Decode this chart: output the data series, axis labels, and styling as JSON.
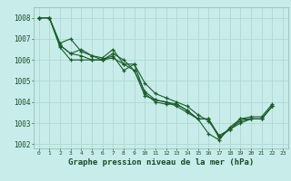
{
  "title": "Graphe pression niveau de la mer (hPa)",
  "bg_color": "#c8ecea",
  "grid_color": "#b0d8d0",
  "line_color": "#1a5c2a",
  "xlim_min": -0.5,
  "xlim_max": 23.5,
  "ylim_min": 1001.8,
  "ylim_max": 1008.5,
  "yticks": [
    1002,
    1003,
    1004,
    1005,
    1006,
    1007,
    1008
  ],
  "xticks": [
    0,
    1,
    2,
    3,
    4,
    5,
    6,
    7,
    8,
    9,
    10,
    11,
    12,
    13,
    14,
    15,
    16,
    17,
    18,
    19,
    20,
    21,
    22,
    23
  ],
  "series": [
    [
      1008.0,
      1008.0,
      1006.8,
      1007.0,
      1006.4,
      1006.2,
      1006.0,
      1006.1,
      1005.8,
      1005.5,
      1004.3,
      1004.1,
      1004.0,
      1003.9,
      1003.6,
      1003.2,
      1002.5,
      1002.2,
      1002.8,
      1003.2,
      1003.2,
      1003.2,
      1003.8,
      null
    ],
    [
      1008.0,
      1008.0,
      1006.6,
      1006.0,
      1006.0,
      1006.0,
      1006.0,
      1006.2,
      1005.5,
      1005.8,
      1004.9,
      1004.4,
      1004.2,
      1004.0,
      1003.8,
      1003.4,
      1003.1,
      1002.4,
      1002.7,
      1003.1,
      1003.2,
      1003.2,
      1003.8,
      null
    ],
    [
      1008.0,
      1008.0,
      1006.7,
      1006.3,
      1006.2,
      1006.0,
      1006.0,
      1006.3,
      1006.0,
      1005.5,
      1004.5,
      1004.1,
      1004.0,
      1003.8,
      1003.5,
      1003.2,
      1003.2,
      1002.4,
      1002.7,
      1003.0,
      1003.2,
      1003.2,
      1003.8,
      null
    ],
    [
      1008.0,
      1008.0,
      1006.7,
      1006.3,
      1006.5,
      1006.2,
      1006.1,
      1006.5,
      1005.8,
      1005.8,
      1004.4,
      1004.0,
      1003.9,
      1003.9,
      1003.6,
      1003.2,
      1003.2,
      1002.3,
      1002.7,
      1003.2,
      1003.3,
      1003.3,
      1003.9,
      null
    ]
  ]
}
